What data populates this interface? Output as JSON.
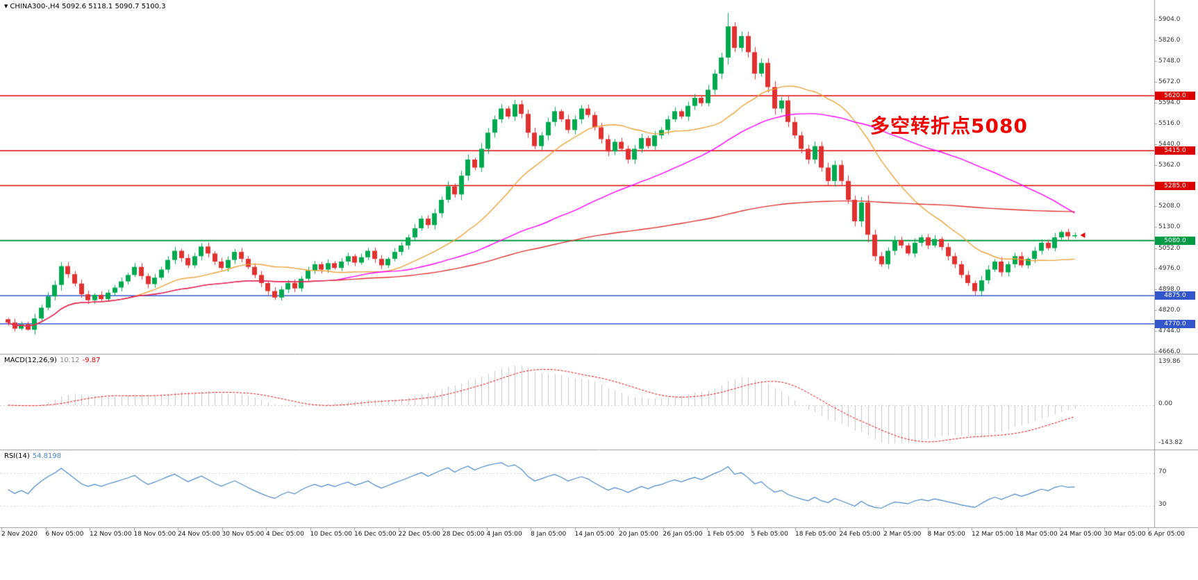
{
  "header": {
    "marker": "▼",
    "symbol": "CHINA300-,H4",
    "quote": "5092.6 5118.1 5090.7 5100.3"
  },
  "annotation": {
    "text": "多空转折点5080",
    "color": "#ef0000"
  },
  "chart_data": {
    "type": "candlestick",
    "title": "CHINA300- H4",
    "symbol": "CHINA300-",
    "timeframe": "H4",
    "quote": {
      "open": 5092.6,
      "high": 5118.1,
      "low": 5090.7,
      "close": 5100.3
    },
    "colors": {
      "up": "#00a94f",
      "down": "#e03030",
      "background": "#ffffff"
    },
    "price_range": {
      "min": 4666.0,
      "max": 5904.0
    },
    "y_ticks": [
      "5904.0",
      "5826.0",
      "5748.0",
      "5672.0",
      "5594.0",
      "5516.0",
      "5440.0",
      "5362.0",
      "5285.0",
      "5208.0",
      "5130.0",
      "5052.0",
      "4976.0",
      "4898.0",
      "4820.0",
      "4744.0",
      "4666.0"
    ],
    "x_labels": [
      "2 Nov 2020",
      "6 Nov 05:00",
      "12 Nov 05:00",
      "18 Nov 05:00",
      "24 Nov 05:00",
      "30 Nov 05:00",
      "4 Dec 05:00",
      "10 Dec 05:00",
      "16 Dec 05:00",
      "22 Dec 05:00",
      "28 Dec 05:00",
      "4 Jan 05:00",
      "8 Jan 05:00",
      "14 Jan 05:00",
      "20 Jan 05:00",
      "26 Jan 05:00",
      "1 Feb 05:00",
      "5 Feb 05:00",
      "18 Feb 05:00",
      "24 Feb 05:00",
      "2 Mar 05:00",
      "8 Mar 05:00",
      "12 Mar 05:00",
      "18 Mar 05:00",
      "24 Mar 05:00",
      "30 Mar 05:00",
      "6 Apr 05:00"
    ],
    "closes": [
      4775,
      4752,
      4768,
      4748,
      4790,
      4830,
      4872,
      4915,
      4985,
      4955,
      4920,
      4880,
      4858,
      4878,
      4862,
      4886,
      4905,
      4928,
      4952,
      4982,
      4948,
      4918,
      4942,
      4972,
      5008,
      5042,
      5015,
      4988,
      5022,
      5058,
      5032,
      5002,
      4978,
      5008,
      5038,
      5012,
      4982,
      4952,
      4922,
      4892,
      4868,
      4898,
      4922,
      4902,
      4938,
      4968,
      4992,
      4972,
      4996,
      4978,
      5002,
      5022,
      4998,
      5018,
      5042,
      5012,
      4988,
      5012,
      5038,
      5062,
      5092,
      5126,
      5162,
      5138,
      5182,
      5232,
      5282,
      5252,
      5322,
      5382,
      5352,
      5422,
      5482,
      5532,
      5572,
      5542,
      5588,
      5552,
      5482,
      5432,
      5472,
      5522,
      5562,
      5532,
      5492,
      5532,
      5572,
      5548,
      5502,
      5458,
      5412,
      5448,
      5422,
      5382,
      5422,
      5462,
      5432,
      5472,
      5492,
      5532,
      5562,
      5542,
      5582,
      5612,
      5592,
      5642,
      5702,
      5762,
      5878,
      5798,
      5842,
      5782,
      5702,
      5742,
      5652,
      5572,
      5602,
      5522,
      5472,
      5422,
      5382,
      5432,
      5352,
      5302,
      5362,
      5302,
      5232,
      5152,
      5222,
      5102,
      5022,
      4992,
      5042,
      5082,
      5062,
      5032,
      5072,
      5092,
      5062,
      5086,
      5056,
      5022,
      4992,
      4952,
      4922,
      4892,
      4932,
      4972,
      5002,
      4962,
      4992,
      5022,
      4988,
      5012,
      5042,
      5072,
      5052,
      5092,
      5112,
      5096,
      5100.3
    ],
    "hlines": [
      {
        "price": 5620.0,
        "label": "5620.0",
        "color": "#dd0000"
      },
      {
        "price": 5415.0,
        "label": "5415.0",
        "color": "#dd0000"
      },
      {
        "price": 5285.0,
        "label": "5285.0",
        "color": "#dd0000"
      },
      {
        "price": 5080.0,
        "label": "5080.0",
        "color": "#009944"
      },
      {
        "price": 4875.0,
        "label": "4875.0",
        "color": "#3355cc"
      },
      {
        "price": 4770.0,
        "label": "4770.0",
        "color": "#3355cc"
      }
    ],
    "moving_averages": [
      {
        "period": 20,
        "color": "#eda23b"
      },
      {
        "period": 50,
        "color": "#ff00ff"
      },
      {
        "period": 200,
        "color": "#e03030"
      }
    ]
  },
  "macd": {
    "label": "MACD(12,26,9)",
    "main_value": "10.12",
    "signal_value": "-9.87",
    "ticks": [
      "139.86",
      "0.00",
      "-143.82"
    ],
    "histogram_color": "#c4c4c4",
    "signal_color": "#ee0000"
  },
  "rsi": {
    "label": "RSI(14)",
    "value": "54.8198",
    "levels": [
      70,
      30
    ],
    "line_color": "#4a86c8"
  }
}
